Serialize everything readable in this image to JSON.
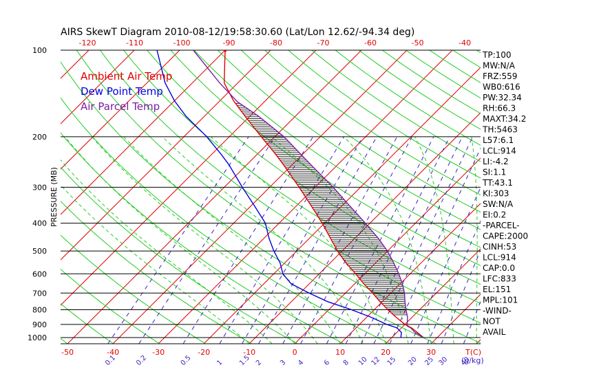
{
  "title": "AIRS SkewT Diagram 2010-08-12/19:58:30.60 (Lat/Lon 12.62/-94.34 deg)",
  "legend": [
    {
      "label": "Ambient Air Temp",
      "color": "#e00000"
    },
    {
      "label": "Dew Point Temp",
      "color": "#0000dd"
    },
    {
      "label": "Air Parcel Temp",
      "color": "#7a1fa0"
    }
  ],
  "colors": {
    "isotherm": "#e00000",
    "dry_adiabat": "#22cc22",
    "moist_adiabat": "#22cc22",
    "mixing_ratio": "#3a1fc0",
    "isobar": "#000000",
    "cape_hatch": "#333333",
    "temperature": "#e00000",
    "dewpoint": "#0000dd",
    "parcel": "#7a1fa0"
  },
  "chart_data": {
    "type": "line",
    "y_axis": {
      "label": "PRESSURE (MB)",
      "scale": "log",
      "range": [
        1050,
        100
      ],
      "ticks": [
        100,
        200,
        300,
        400,
        500,
        600,
        700,
        800,
        900,
        1000
      ]
    },
    "x_axis_bottom": {
      "label": "T(C)",
      "ticks": [
        -50,
        -40,
        -30,
        -20,
        -10,
        0,
        10,
        20,
        30
      ]
    },
    "x_axis_top": {
      "ticks": [
        -120,
        -110,
        -100,
        -90,
        -80,
        -70,
        -60,
        -50,
        -40
      ]
    },
    "mixing_ratio_axis": {
      "label": "(g/kg)",
      "ticks": [
        "0.1",
        "0.2",
        "0.5",
        "1",
        "1.5",
        "2",
        "3",
        "4",
        "6",
        "8",
        "10",
        "12",
        "15",
        "20",
        "25",
        "30",
        "40"
      ]
    },
    "series": [
      {
        "name": "Ambient Air Temp",
        "pressure": [
          1000,
          960,
          925,
          900,
          850,
          800,
          750,
          700,
          650,
          600,
          550,
          500,
          450,
          400,
          350,
          300,
          250,
          230,
          200,
          170,
          150,
          130,
          100
        ],
        "values": [
          27.0,
          24.5,
          22.2,
          20.0,
          16.5,
          13.0,
          9.5,
          6.0,
          2.0,
          -2.0,
          -6.5,
          -11.0,
          -15.5,
          -20.5,
          -26.5,
          -33.5,
          -42.0,
          -46.0,
          -53.0,
          -61.0,
          -67.0,
          -73.0,
          -80.0
        ]
      },
      {
        "name": "Dew Point Temp",
        "pressure": [
          1000,
          960,
          925,
          900,
          850,
          800,
          750,
          700,
          650,
          600,
          550,
          500,
          450,
          400,
          350,
          300,
          250,
          230,
          200,
          170,
          150,
          130,
          100
        ],
        "values": [
          22.0,
          21.0,
          19.0,
          16.0,
          11.0,
          5.0,
          -2.0,
          -8.0,
          -14.0,
          -18.0,
          -21.0,
          -25.0,
          -29.0,
          -33.0,
          -39.0,
          -46.0,
          -54.0,
          -58.0,
          -65.0,
          -74.0,
          -80.0,
          -86.0,
          -95.0
        ]
      },
      {
        "name": "Air Parcel Temp",
        "pressure": [
          1000,
          960,
          925,
          914,
          900,
          850,
          800,
          750,
          700,
          650,
          600,
          550,
          500,
          450,
          400,
          350,
          300,
          250,
          200,
          170,
          151,
          130,
          100
        ],
        "values": [
          27.0,
          24.0,
          22.0,
          21.0,
          20.5,
          19.0,
          17.0,
          15.0,
          13.0,
          10.5,
          7.5,
          4.0,
          0.0,
          -5.0,
          -11.0,
          -18.0,
          -26.0,
          -36.0,
          -48.0,
          -58.0,
          -66.0,
          -74.0,
          -87.0
        ]
      }
    ]
  },
  "indices": [
    "TP:100",
    "MW:N/A",
    "FRZ:559",
    "WB0:616",
    "PW:32.34",
    "RH:66.3",
    "MAXT:34.2",
    "TH:5463",
    "L57:6.1",
    "LCL:914",
    "LI:-4.2",
    "SI:1.1",
    "TT:43.1",
    "KI:303",
    "SW:N/A",
    "EI:0.2",
    "-PARCEL-",
    "CAPE:2000",
    "CINH:53",
    "LCL:914",
    "CAP:0.0",
    "LFC:833",
    "EL:151",
    "MPL:101",
    "-WIND-",
    "NOT",
    "AVAIL"
  ]
}
